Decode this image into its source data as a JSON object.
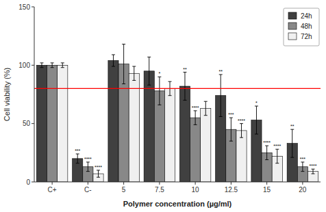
{
  "chart_data": {
    "type": "bar",
    "categories": [
      "C+",
      "C-",
      "5",
      "7.5",
      "10",
      "12.5",
      "15",
      "20"
    ],
    "series": [
      {
        "name": "24h",
        "color": "#404040",
        "values": [
          100,
          20,
          104,
          95,
          82,
          74,
          53,
          33
        ],
        "errors": [
          2,
          4,
          5,
          12,
          12,
          18,
          12,
          12
        ],
        "annotations": [
          null,
          "***",
          null,
          null,
          "**",
          "**",
          "*",
          "**"
        ]
      },
      {
        "name": "48h",
        "color": "#888888",
        "values": [
          100,
          13,
          101,
          78,
          55,
          45,
          25,
          13
        ],
        "errors": [
          2,
          4,
          17,
          12,
          6,
          10,
          6,
          4
        ],
        "annotations": [
          null,
          "****",
          null,
          "*",
          "****",
          "***",
          "****",
          "***"
        ]
      },
      {
        "name": "72h",
        "color": "#f0f0f0",
        "values": [
          100,
          7,
          93,
          80,
          63,
          44,
          22,
          9
        ],
        "errors": [
          2,
          3,
          6,
          6,
          6,
          6,
          6,
          2
        ],
        "annotations": [
          null,
          "****",
          null,
          null,
          null,
          "****",
          "****",
          "****"
        ]
      }
    ],
    "reference_line": {
      "value": 80,
      "color": "#ff0000"
    },
    "xlabel": "Polymer concentration (µg/ml)",
    "ylabel": "Cell viability (%)",
    "ylim": [
      0,
      150
    ],
    "yticks": [
      0,
      50,
      100,
      150
    ],
    "grid": false,
    "legend": "upper right"
  }
}
